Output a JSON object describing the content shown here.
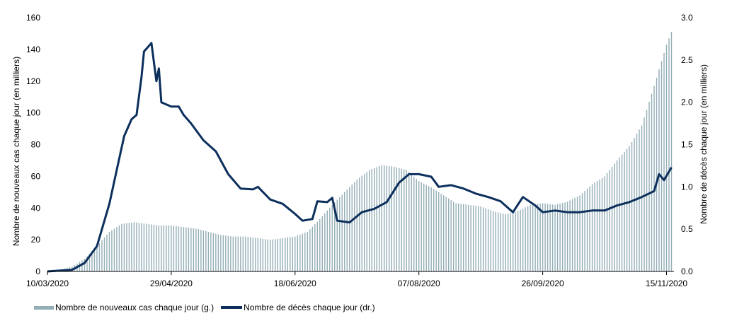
{
  "chart_data": {
    "type": "bar+line",
    "ylabel_left": "Nombre de nouveaux cas chaque jour (en milliers)",
    "ylabel_right": "Nombre de décès chaque jour (en milliers)",
    "ylim_left": [
      0,
      160
    ],
    "ylim_right": [
      0,
      3.0
    ],
    "yticks_left": [
      "0",
      "20",
      "40",
      "60",
      "80",
      "100",
      "120",
      "140",
      "160"
    ],
    "yticks_right": [
      "0.0",
      "0.5",
      "1.0",
      "1.5",
      "2.0",
      "2.5",
      "3.0"
    ],
    "xrange": [
      "2020-03-10",
      "2020-11-18"
    ],
    "xticks": [
      {
        "date": "2020-03-10",
        "label": "10/03/2020"
      },
      {
        "date": "2020-04-29",
        "label": "29/04/2020"
      },
      {
        "date": "2020-06-18",
        "label": "18/06/2020"
      },
      {
        "date": "2020-08-07",
        "label": "07/08/2020"
      },
      {
        "date": "2020-09-26",
        "label": "26/09/2020"
      },
      {
        "date": "2020-11-15",
        "label": "15/11/2020"
      }
    ],
    "series": [
      {
        "name": "Nombre de nouveaux cas chaque jour (g.)",
        "type": "bar",
        "axis": "left",
        "color": "#93adb6",
        "points": [
          [
            "2020-03-10",
            0.3
          ],
          [
            "2020-03-15",
            1
          ],
          [
            "2020-03-20",
            3
          ],
          [
            "2020-03-25",
            8
          ],
          [
            "2020-03-30",
            16
          ],
          [
            "2020-04-04",
            25
          ],
          [
            "2020-04-09",
            30
          ],
          [
            "2020-04-14",
            31
          ],
          [
            "2020-04-19",
            30
          ],
          [
            "2020-04-24",
            29
          ],
          [
            "2020-04-29",
            29
          ],
          [
            "2020-05-04",
            28
          ],
          [
            "2020-05-09",
            27
          ],
          [
            "2020-05-14",
            25
          ],
          [
            "2020-05-19",
            23
          ],
          [
            "2020-05-24",
            22
          ],
          [
            "2020-05-29",
            22
          ],
          [
            "2020-06-03",
            21
          ],
          [
            "2020-06-08",
            20
          ],
          [
            "2020-06-13",
            21
          ],
          [
            "2020-06-18",
            22
          ],
          [
            "2020-06-23",
            25
          ],
          [
            "2020-06-28",
            33
          ],
          [
            "2020-07-03",
            42
          ],
          [
            "2020-07-08",
            50
          ],
          [
            "2020-07-13",
            58
          ],
          [
            "2020-07-18",
            64
          ],
          [
            "2020-07-23",
            67
          ],
          [
            "2020-07-28",
            66
          ],
          [
            "2020-08-02",
            64
          ],
          [
            "2020-08-07",
            57
          ],
          [
            "2020-08-12",
            53
          ],
          [
            "2020-08-17",
            48
          ],
          [
            "2020-08-22",
            43
          ],
          [
            "2020-08-27",
            42
          ],
          [
            "2020-09-01",
            41
          ],
          [
            "2020-09-06",
            38
          ],
          [
            "2020-09-11",
            36
          ],
          [
            "2020-09-16",
            38
          ],
          [
            "2020-09-21",
            42
          ],
          [
            "2020-09-26",
            43
          ],
          [
            "2020-10-01",
            42
          ],
          [
            "2020-10-06",
            44
          ],
          [
            "2020-10-11",
            48
          ],
          [
            "2020-10-16",
            55
          ],
          [
            "2020-10-21",
            60
          ],
          [
            "2020-10-26",
            70
          ],
          [
            "2020-10-31",
            79
          ],
          [
            "2020-11-05",
            92
          ],
          [
            "2020-11-10",
            117
          ],
          [
            "2020-11-15",
            143
          ],
          [
            "2020-11-17",
            151
          ]
        ]
      },
      {
        "name": "Nombre de décès chaque jour (dr.)",
        "type": "line",
        "axis": "right",
        "color": "#0c2f5c",
        "points": [
          [
            "2020-03-10",
            0.0
          ],
          [
            "2020-03-15",
            0.01
          ],
          [
            "2020-03-20",
            0.02
          ],
          [
            "2020-03-25",
            0.1
          ],
          [
            "2020-03-30",
            0.3
          ],
          [
            "2020-04-04",
            0.8
          ],
          [
            "2020-04-07",
            1.2
          ],
          [
            "2020-04-10",
            1.6
          ],
          [
            "2020-04-13",
            1.8
          ],
          [
            "2020-04-15",
            1.85
          ],
          [
            "2020-04-17",
            2.3
          ],
          [
            "2020-04-18",
            2.6
          ],
          [
            "2020-04-21",
            2.7
          ],
          [
            "2020-04-23",
            2.25
          ],
          [
            "2020-04-24",
            2.4
          ],
          [
            "2020-04-25",
            2.0
          ],
          [
            "2020-04-29",
            1.95
          ],
          [
            "2020-05-02",
            1.95
          ],
          [
            "2020-05-04",
            1.85
          ],
          [
            "2020-05-07",
            1.75
          ],
          [
            "2020-05-12",
            1.55
          ],
          [
            "2020-05-17",
            1.42
          ],
          [
            "2020-05-22",
            1.15
          ],
          [
            "2020-05-27",
            0.98
          ],
          [
            "2020-06-01",
            0.97
          ],
          [
            "2020-06-03",
            1.0
          ],
          [
            "2020-06-08",
            0.85
          ],
          [
            "2020-06-13",
            0.8
          ],
          [
            "2020-06-18",
            0.68
          ],
          [
            "2020-06-21",
            0.6
          ],
          [
            "2020-06-25",
            0.62
          ],
          [
            "2020-06-27",
            0.83
          ],
          [
            "2020-07-01",
            0.82
          ],
          [
            "2020-07-03",
            0.87
          ],
          [
            "2020-07-05",
            0.6
          ],
          [
            "2020-07-10",
            0.58
          ],
          [
            "2020-07-15",
            0.7
          ],
          [
            "2020-07-20",
            0.74
          ],
          [
            "2020-07-25",
            0.82
          ],
          [
            "2020-07-30",
            1.05
          ],
          [
            "2020-08-03",
            1.15
          ],
          [
            "2020-08-07",
            1.15
          ],
          [
            "2020-08-12",
            1.12
          ],
          [
            "2020-08-15",
            1.0
          ],
          [
            "2020-08-20",
            1.02
          ],
          [
            "2020-08-25",
            0.98
          ],
          [
            "2020-08-30",
            0.92
          ],
          [
            "2020-09-04",
            0.88
          ],
          [
            "2020-09-09",
            0.83
          ],
          [
            "2020-09-14",
            0.7
          ],
          [
            "2020-09-18",
            0.88
          ],
          [
            "2020-09-23",
            0.78
          ],
          [
            "2020-09-26",
            0.7
          ],
          [
            "2020-10-01",
            0.72
          ],
          [
            "2020-10-06",
            0.7
          ],
          [
            "2020-10-11",
            0.7
          ],
          [
            "2020-10-16",
            0.72
          ],
          [
            "2020-10-21",
            0.72
          ],
          [
            "2020-10-26",
            0.78
          ],
          [
            "2020-10-31",
            0.82
          ],
          [
            "2020-11-05",
            0.88
          ],
          [
            "2020-11-10",
            0.95
          ],
          [
            "2020-11-12",
            1.15
          ],
          [
            "2020-11-14",
            1.08
          ],
          [
            "2020-11-17",
            1.23
          ]
        ]
      }
    ],
    "legend_placement": "bottom-left",
    "grid": false
  },
  "legend": {
    "bar_label": "Nombre de nouveaux cas chaque jour (g.)",
    "line_label": "Nombre de décès chaque jour (dr.)"
  }
}
